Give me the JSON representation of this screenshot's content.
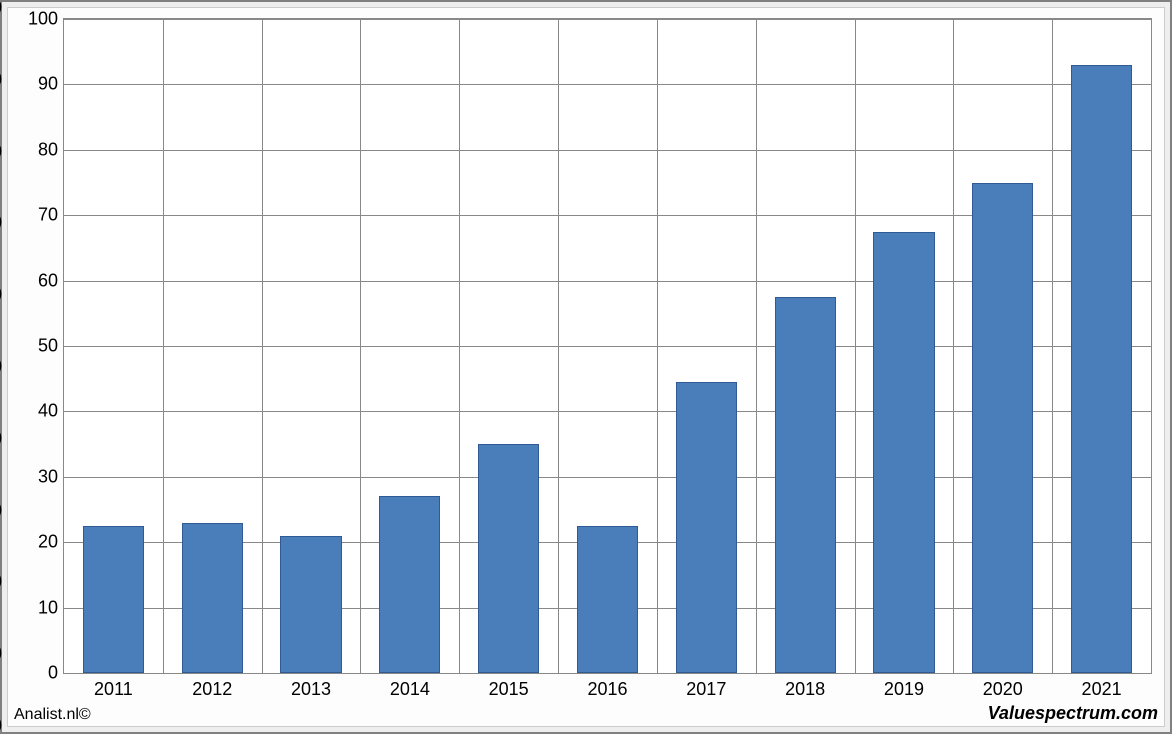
{
  "chart": {
    "type": "bar",
    "categories": [
      "2011",
      "2012",
      "2013",
      "2014",
      "2015",
      "2016",
      "2017",
      "2018",
      "2019",
      "2020",
      "2021"
    ],
    "values": [
      22.5,
      23,
      21,
      27,
      35,
      22.5,
      44.5,
      57.5,
      67.5,
      75,
      93
    ],
    "bar_color": "#4a7ebb",
    "bar_border_color": "#2f5a94",
    "background_color": "#ffffff",
    "grid_color": "#888888",
    "ylim": [
      0,
      100
    ],
    "ytick_step": 10,
    "yticks": [
      "0",
      "10",
      "20",
      "30",
      "40",
      "50",
      "60",
      "70",
      "80",
      "90",
      "100"
    ],
    "bar_width_ratio": 0.62,
    "axis_fontsize": 18,
    "axis_color": "#000000",
    "frame_border_color": "#808080",
    "frame_background": "#eeeeee",
    "inner_border_color": "#cccccc"
  },
  "footer": {
    "left": "Analist.nl©",
    "right": "Valuespectrum.com"
  }
}
